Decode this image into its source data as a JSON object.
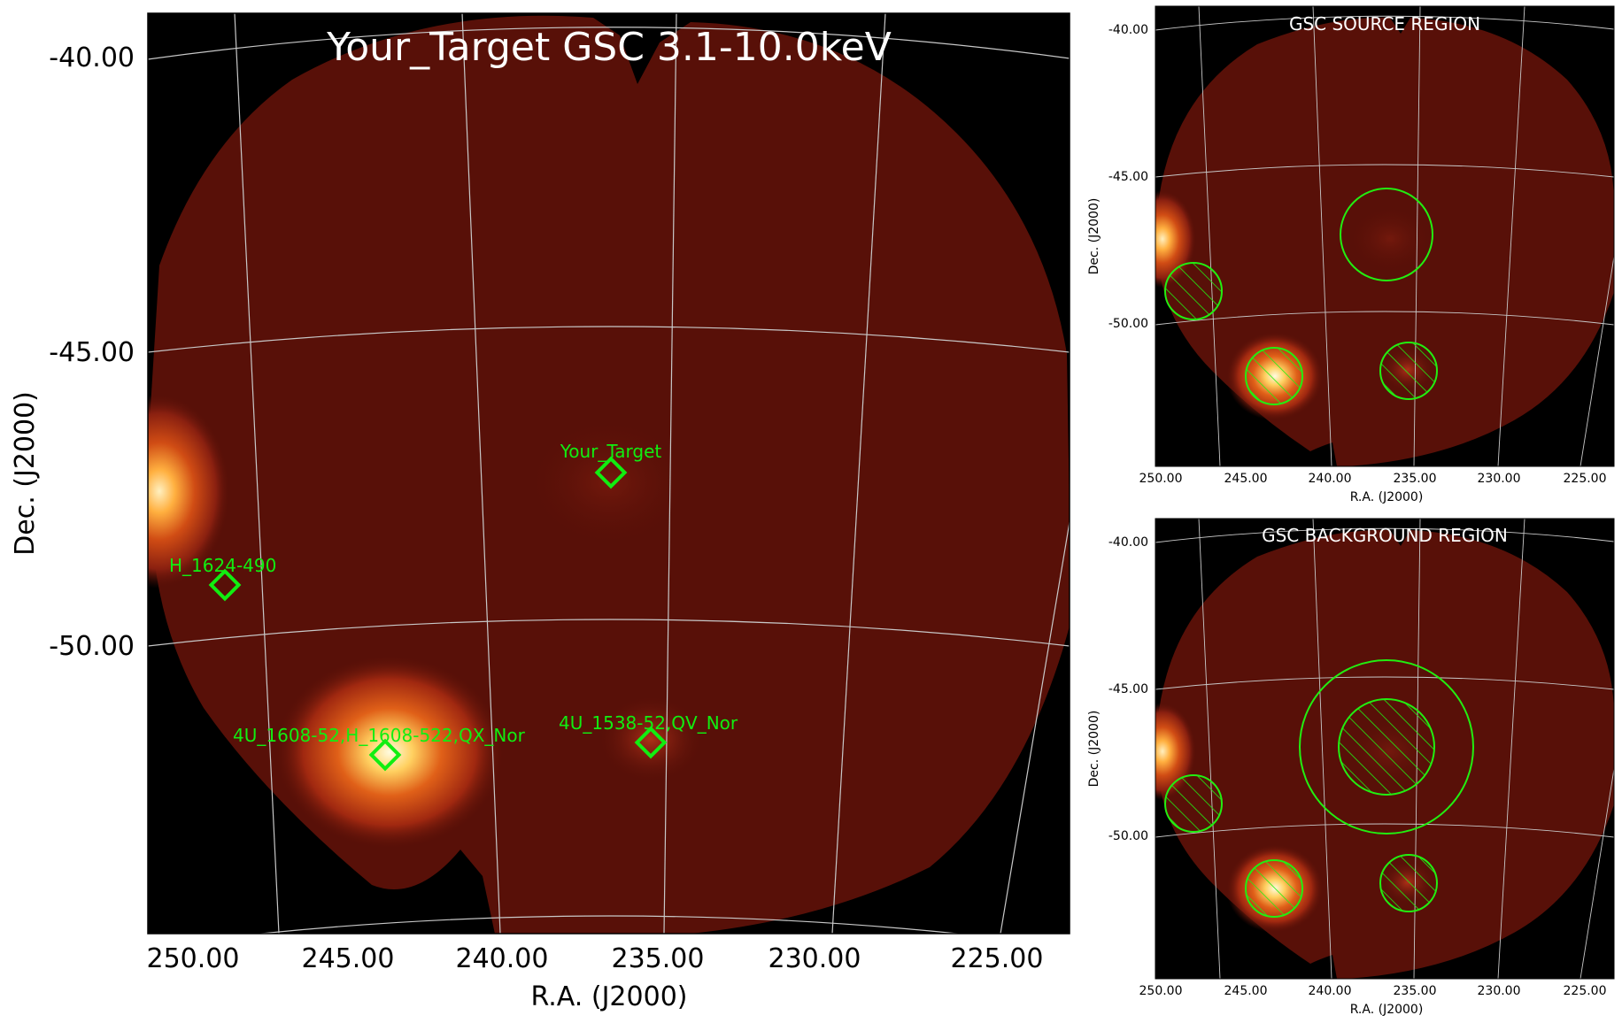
{
  "main_panel": {
    "title": "Your_Target GSC 3.1-10.0keV",
    "xlabel": "R.A. (J2000)",
    "ylabel": "Dec. (J2000)",
    "x_ticks": [
      "250.00",
      "245.00",
      "240.00",
      "235.00",
      "230.00",
      "225.00"
    ],
    "y_ticks": [
      "-40.00",
      "-45.00",
      "-50.00"
    ],
    "sources": [
      {
        "label": "Your_Target"
      },
      {
        "label": "H_1624-490"
      },
      {
        "label": "4U_1608-52,H_1608-522,QX_Nor"
      },
      {
        "label": "4U_1538-52,QV_Nor"
      }
    ]
  },
  "source_panel": {
    "title": "GSC SOURCE REGION",
    "xlabel": "R.A. (J2000)",
    "ylabel": "Dec. (J2000)",
    "x_ticks": [
      "250.00",
      "245.00",
      "240.00",
      "235.00",
      "230.00",
      "225.00"
    ],
    "y_ticks": [
      "-40.00",
      "-45.00",
      "-50.00"
    ]
  },
  "background_panel": {
    "title": "GSC BACKGROUND REGION",
    "xlabel": "R.A. (J2000)",
    "ylabel": "Dec. (J2000)",
    "x_ticks": [
      "250.00",
      "245.00",
      "240.00",
      "235.00",
      "230.00",
      "225.00"
    ],
    "y_ticks": [
      "-40.00",
      "-45.00",
      "-50.00"
    ]
  },
  "colors": {
    "region": "#22ee11",
    "marker": "#11ee11",
    "grid": "#c8c8c8",
    "sky_background": "#000000",
    "diffuse_emission": "#581008",
    "bright_source": "#fff2b0"
  }
}
